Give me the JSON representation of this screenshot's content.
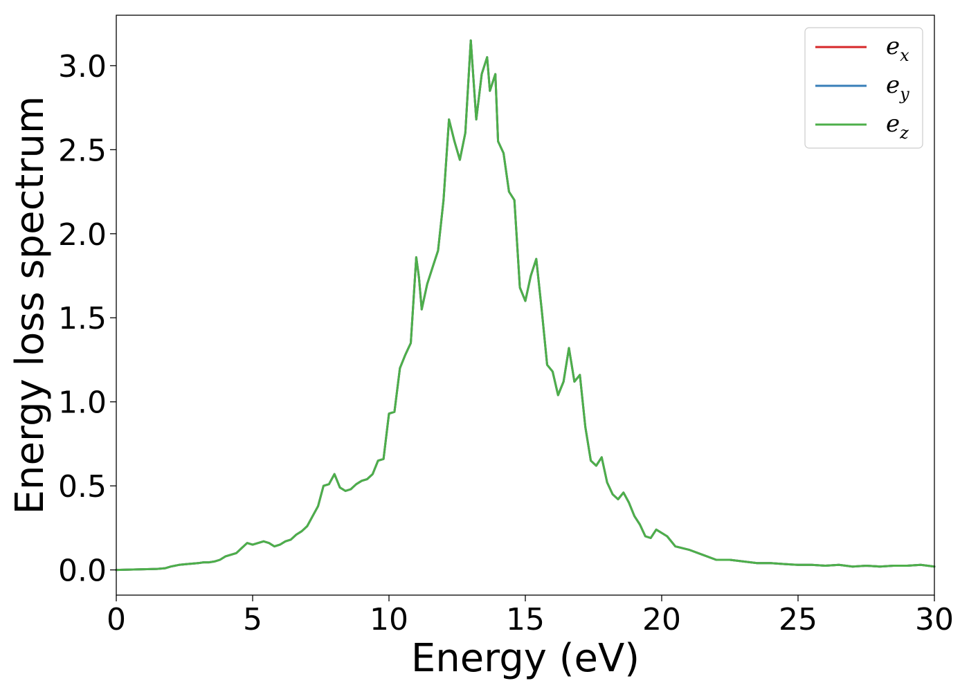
{
  "chart_data": {
    "type": "line",
    "title": "",
    "xlabel": "Energy (eV)",
    "ylabel": "Energy loss spectrum",
    "xlim": [
      0,
      30
    ],
    "ylim": [
      -0.15,
      3.3
    ],
    "x_ticks": [
      "0",
      "5",
      "10",
      "15",
      "20",
      "25",
      "30"
    ],
    "y_ticks": [
      "0.0",
      "0.5",
      "1.0",
      "1.5",
      "2.0",
      "2.5",
      "3.0"
    ],
    "grid": false,
    "legend_position": "top-right",
    "x": [
      0,
      0.5,
      1,
      1.5,
      1.8,
      2.0,
      2.3,
      2.6,
      3.0,
      3.2,
      3.4,
      3.6,
      3.8,
      4.0,
      4.2,
      4.4,
      4.6,
      4.8,
      5.0,
      5.2,
      5.4,
      5.6,
      5.8,
      6.0,
      6.2,
      6.4,
      6.6,
      6.8,
      7.0,
      7.2,
      7.4,
      7.6,
      7.8,
      8.0,
      8.2,
      8.4,
      8.6,
      8.8,
      9.0,
      9.2,
      9.4,
      9.6,
      9.8,
      10.0,
      10.2,
      10.4,
      10.6,
      10.8,
      11.0,
      11.1,
      11.2,
      11.4,
      11.6,
      11.8,
      12.0,
      12.2,
      12.4,
      12.6,
      12.8,
      13.0,
      13.2,
      13.4,
      13.6,
      13.7,
      13.9,
      14.0,
      14.2,
      14.4,
      14.6,
      14.8,
      15.0,
      15.2,
      15.4,
      15.6,
      15.8,
      16.0,
      16.2,
      16.4,
      16.6,
      16.8,
      17.0,
      17.2,
      17.4,
      17.6,
      17.8,
      18.0,
      18.2,
      18.4,
      18.6,
      18.8,
      19.0,
      19.2,
      19.4,
      19.6,
      19.8,
      20.0,
      20.2,
      20.5,
      21.0,
      21.5,
      22.0,
      22.5,
      23.0,
      23.5,
      24.0,
      24.5,
      25.0,
      25.5,
      26.0,
      26.5,
      27.0,
      27.5,
      28.0,
      28.5,
      29.0,
      29.5,
      30.0
    ],
    "series": [
      {
        "name": "e_x",
        "label": "e",
        "subscript": "x",
        "color": "#d62728",
        "values": [
          0.0,
          0.002,
          0.004,
          0.006,
          0.01,
          0.02,
          0.03,
          0.035,
          0.04,
          0.045,
          0.045,
          0.05,
          0.06,
          0.08,
          0.09,
          0.1,
          0.13,
          0.16,
          0.15,
          0.16,
          0.17,
          0.16,
          0.14,
          0.15,
          0.17,
          0.18,
          0.21,
          0.23,
          0.26,
          0.32,
          0.38,
          0.5,
          0.51,
          0.57,
          0.49,
          0.47,
          0.48,
          0.51,
          0.53,
          0.54,
          0.57,
          0.65,
          0.66,
          0.93,
          0.94,
          1.2,
          1.28,
          1.35,
          1.86,
          1.74,
          1.55,
          1.7,
          1.8,
          1.9,
          2.2,
          2.68,
          2.55,
          2.44,
          2.6,
          3.15,
          2.68,
          2.95,
          3.05,
          2.85,
          2.95,
          2.55,
          2.48,
          2.25,
          2.2,
          1.68,
          1.6,
          1.75,
          1.85,
          1.55,
          1.22,
          1.18,
          1.04,
          1.12,
          1.32,
          1.12,
          1.16,
          0.85,
          0.65,
          0.62,
          0.67,
          0.52,
          0.45,
          0.42,
          0.46,
          0.4,
          0.32,
          0.27,
          0.2,
          0.19,
          0.24,
          0.22,
          0.2,
          0.14,
          0.12,
          0.09,
          0.06,
          0.06,
          0.05,
          0.04,
          0.04,
          0.035,
          0.03,
          0.03,
          0.025,
          0.03,
          0.02,
          0.025,
          0.02,
          0.025,
          0.025,
          0.03,
          0.02
        ]
      },
      {
        "name": "e_y",
        "label": "e",
        "subscript": "y",
        "color": "#377eb8",
        "values": [
          0.0,
          0.002,
          0.004,
          0.006,
          0.01,
          0.02,
          0.03,
          0.035,
          0.04,
          0.045,
          0.045,
          0.05,
          0.06,
          0.08,
          0.09,
          0.1,
          0.13,
          0.16,
          0.15,
          0.16,
          0.17,
          0.16,
          0.14,
          0.15,
          0.17,
          0.18,
          0.21,
          0.23,
          0.26,
          0.32,
          0.38,
          0.5,
          0.51,
          0.57,
          0.49,
          0.47,
          0.48,
          0.51,
          0.53,
          0.54,
          0.57,
          0.65,
          0.66,
          0.93,
          0.94,
          1.2,
          1.28,
          1.35,
          1.86,
          1.74,
          1.55,
          1.7,
          1.8,
          1.9,
          2.2,
          2.68,
          2.55,
          2.44,
          2.6,
          3.15,
          2.68,
          2.95,
          3.05,
          2.85,
          2.95,
          2.55,
          2.48,
          2.25,
          2.2,
          1.68,
          1.6,
          1.75,
          1.85,
          1.55,
          1.22,
          1.18,
          1.04,
          1.12,
          1.32,
          1.12,
          1.16,
          0.85,
          0.65,
          0.62,
          0.67,
          0.52,
          0.45,
          0.42,
          0.46,
          0.4,
          0.32,
          0.27,
          0.2,
          0.19,
          0.24,
          0.22,
          0.2,
          0.14,
          0.12,
          0.09,
          0.06,
          0.06,
          0.05,
          0.04,
          0.04,
          0.035,
          0.03,
          0.03,
          0.025,
          0.03,
          0.02,
          0.025,
          0.02,
          0.025,
          0.025,
          0.03,
          0.02
        ]
      },
      {
        "name": "e_z",
        "label": "e",
        "subscript": "z",
        "color": "#4daf4a",
        "values": [
          0.0,
          0.002,
          0.004,
          0.006,
          0.01,
          0.02,
          0.03,
          0.035,
          0.04,
          0.045,
          0.045,
          0.05,
          0.06,
          0.08,
          0.09,
          0.1,
          0.13,
          0.16,
          0.15,
          0.16,
          0.17,
          0.16,
          0.14,
          0.15,
          0.17,
          0.18,
          0.21,
          0.23,
          0.26,
          0.32,
          0.38,
          0.5,
          0.51,
          0.57,
          0.49,
          0.47,
          0.48,
          0.51,
          0.53,
          0.54,
          0.57,
          0.65,
          0.66,
          0.93,
          0.94,
          1.2,
          1.28,
          1.35,
          1.86,
          1.74,
          1.55,
          1.7,
          1.8,
          1.9,
          2.2,
          2.68,
          2.55,
          2.44,
          2.6,
          3.15,
          2.68,
          2.95,
          3.05,
          2.85,
          2.95,
          2.55,
          2.48,
          2.25,
          2.2,
          1.68,
          1.6,
          1.75,
          1.85,
          1.55,
          1.22,
          1.18,
          1.04,
          1.12,
          1.32,
          1.12,
          1.16,
          0.85,
          0.65,
          0.62,
          0.67,
          0.52,
          0.45,
          0.42,
          0.46,
          0.4,
          0.32,
          0.27,
          0.2,
          0.19,
          0.24,
          0.22,
          0.2,
          0.14,
          0.12,
          0.09,
          0.06,
          0.06,
          0.05,
          0.04,
          0.04,
          0.035,
          0.03,
          0.03,
          0.025,
          0.03,
          0.02,
          0.025,
          0.02,
          0.025,
          0.025,
          0.03,
          0.02
        ]
      }
    ]
  }
}
